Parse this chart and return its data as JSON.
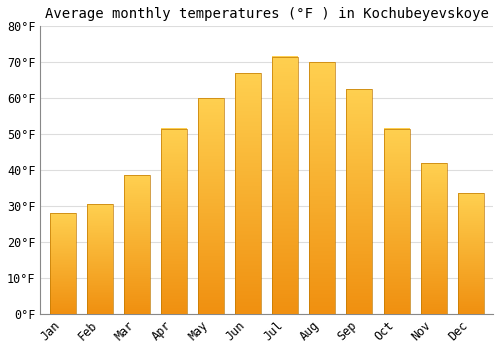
{
  "title": "Average monthly temperatures (°F ) in Kochubeyevskoye",
  "months": [
    "Jan",
    "Feb",
    "Mar",
    "Apr",
    "May",
    "Jun",
    "Jul",
    "Aug",
    "Sep",
    "Oct",
    "Nov",
    "Dec"
  ],
  "values": [
    28,
    30.5,
    38.5,
    51.5,
    60,
    67,
    71.5,
    70,
    62.5,
    51.5,
    42,
    33.5
  ],
  "bar_color": "#F5A623",
  "bar_edge_color": "#C07800",
  "background_color": "#FFFFFF",
  "grid_color": "#DDDDDD",
  "ylim": [
    0,
    80
  ],
  "yticks": [
    0,
    10,
    20,
    30,
    40,
    50,
    60,
    70,
    80
  ],
  "ytick_labels": [
    "0°F",
    "10°F",
    "20°F",
    "30°F",
    "40°F",
    "50°F",
    "60°F",
    "70°F",
    "80°F"
  ],
  "title_fontsize": 10,
  "tick_fontsize": 8.5,
  "font_family": "monospace"
}
